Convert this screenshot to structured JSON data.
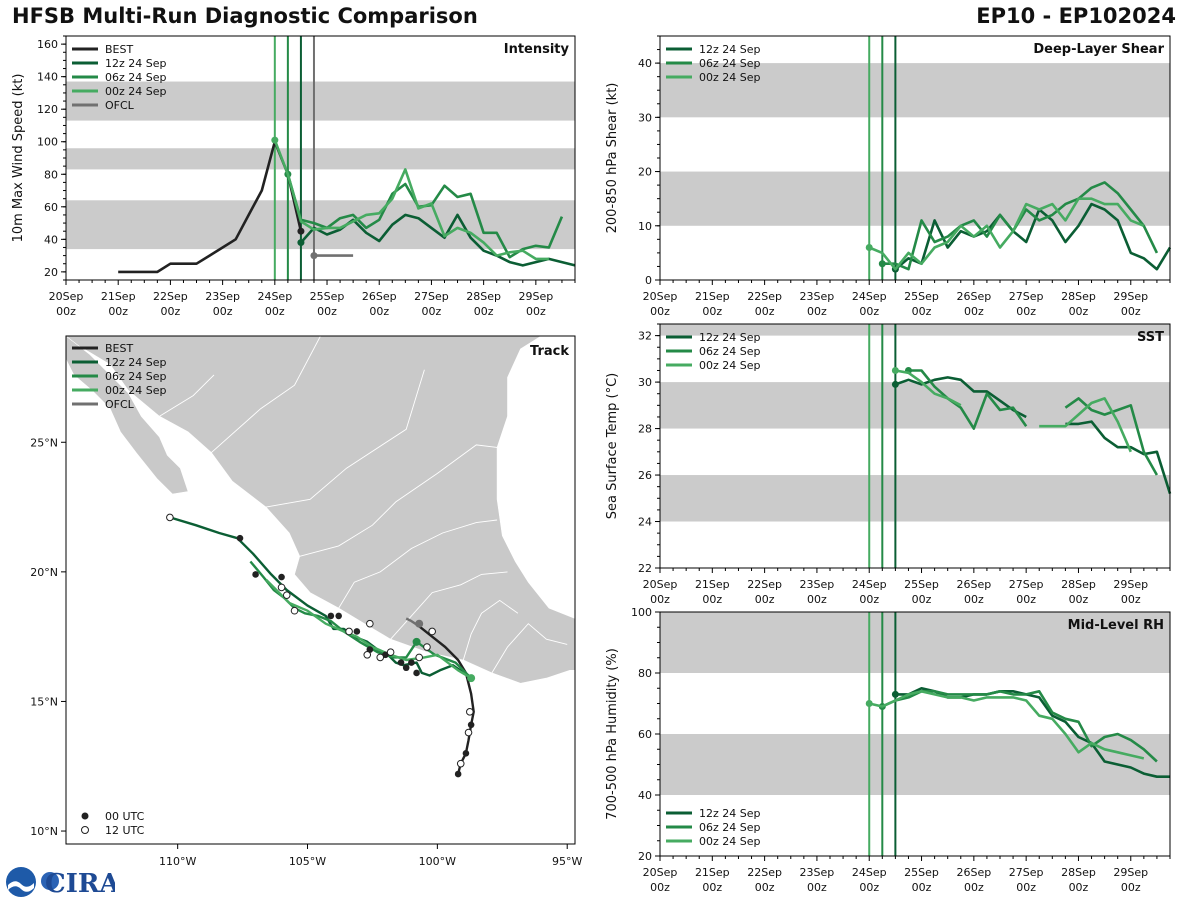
{
  "header": {
    "title": "HFSB Multi-Run Diagnostic Comparison",
    "storm": "EP10 - EP102024"
  },
  "colors": {
    "best": "#222222",
    "r12": "#0b5e34",
    "r06": "#248a47",
    "r00": "#46ab61",
    "ofcl": "#707070",
    "band": "#cbcbcb",
    "land": "#c9c9c9"
  },
  "legend": {
    "best": "BEST",
    "r12": "12z 24 Sep",
    "r06": "06z 24 Sep",
    "r00": "00z 24 Sep",
    "ofcl": "OFCL",
    "utc00": "00 UTC",
    "utc12": "12 UTC"
  },
  "logo": {
    "text": "CIRA"
  },
  "xticks": [
    {
      "day": "20Sep",
      "hr": "00z"
    },
    {
      "day": "21Sep",
      "hr": "00z"
    },
    {
      "day": "22Sep",
      "hr": "00z"
    },
    {
      "day": "23Sep",
      "hr": "00z"
    },
    {
      "day": "24Sep",
      "hr": "00z"
    },
    {
      "day": "25Sep",
      "hr": "00z"
    },
    {
      "day": "26Sep",
      "hr": "00z"
    },
    {
      "day": "27Sep",
      "hr": "00z"
    },
    {
      "day": "28Sep",
      "hr": "00z"
    },
    {
      "day": "29Sep",
      "hr": "00z"
    }
  ],
  "run_init_hours": [
    96,
    102,
    108
  ],
  "chart_data": [
    {
      "id": "intensity",
      "type": "line",
      "title": "Intensity",
      "xlabel": "",
      "ylabel": "10m Max Wind Speed (kt)",
      "xlim": [
        0,
        234
      ],
      "ylim": [
        15,
        165
      ],
      "yticks": [
        20,
        40,
        60,
        80,
        100,
        120,
        140,
        160
      ],
      "bands": [
        [
          34,
          64
        ],
        [
          83,
          96
        ],
        [
          113,
          137
        ]
      ],
      "series": [
        {
          "name": "BEST",
          "key": "best",
          "x": [
            24,
            30,
            36,
            42,
            48,
            54,
            60,
            66,
            72,
            78,
            84,
            90,
            96,
            102,
            108
          ],
          "y": [
            20,
            20,
            20,
            20,
            25,
            25,
            25,
            30,
            35,
            40,
            55,
            70,
            100,
            80,
            45
          ]
        },
        {
          "name": "OFCL",
          "key": "ofcl",
          "x": [
            114,
            120,
            126,
            132
          ],
          "y": [
            30,
            30,
            30,
            30
          ]
        },
        {
          "name": "12z 24 Sep",
          "key": "r12",
          "x": [
            108,
            114,
            120,
            126,
            132,
            138,
            144,
            150,
            156,
            162,
            168,
            174,
            180,
            186,
            192,
            198,
            204,
            210,
            216,
            222,
            228,
            234
          ],
          "y": [
            38,
            47,
            43,
            46,
            52,
            44,
            39,
            49,
            55,
            53,
            47,
            41,
            55,
            41,
            33,
            30,
            26,
            24,
            26,
            28,
            26,
            24
          ]
        },
        {
          "name": "06z 24 Sep",
          "key": "r06",
          "x": [
            102,
            108,
            114,
            120,
            126,
            132,
            138,
            144,
            150,
            156,
            162,
            168,
            174,
            180,
            186,
            192,
            198,
            204,
            210,
            216,
            222,
            228
          ],
          "y": [
            80,
            52,
            50,
            47,
            53,
            55,
            47,
            52,
            68,
            74,
            60,
            61,
            73,
            66,
            68,
            44,
            44,
            29,
            34,
            36,
            35,
            54
          ]
        },
        {
          "name": "00z 24 Sep",
          "key": "r00",
          "x": [
            96,
            102,
            108,
            114,
            120,
            126,
            132,
            138,
            144,
            150,
            156,
            162,
            168,
            174,
            180,
            186,
            192,
            198,
            204,
            210,
            216,
            222
          ],
          "y": [
            101,
            80,
            51,
            46,
            47,
            47,
            51,
            55,
            56,
            65,
            83,
            59,
            62,
            42,
            47,
            44,
            38,
            30,
            32,
            33,
            28,
            28
          ]
        }
      ]
    },
    {
      "id": "shear",
      "type": "line",
      "title": "Deep-Layer Shear",
      "xlabel": "",
      "ylabel": "200-850 hPa Shear (kt)",
      "xlim": [
        0,
        234
      ],
      "ylim": [
        0,
        45
      ],
      "yticks": [
        0,
        10,
        20,
        30,
        40
      ],
      "bands": [
        [
          10,
          20
        ],
        [
          30,
          40
        ]
      ],
      "series": [
        {
          "name": "12z 24 Sep",
          "key": "r12",
          "x": [
            108,
            114,
            120,
            126,
            132,
            138,
            144,
            150,
            156,
            162,
            168,
            174,
            180,
            186,
            192,
            198,
            204,
            210,
            216,
            222,
            228,
            234
          ],
          "y": [
            2,
            4,
            3,
            11,
            6,
            9,
            8,
            9,
            12,
            9,
            7,
            13,
            11,
            7,
            10,
            14,
            13,
            11,
            5,
            4,
            2,
            6
          ]
        },
        {
          "name": "06z 24 Sep",
          "key": "r06",
          "x": [
            102,
            108,
            114,
            120,
            126,
            132,
            138,
            144,
            150,
            156,
            162,
            168,
            174,
            180,
            186,
            192,
            198,
            204,
            210,
            216,
            222,
            228
          ],
          "y": [
            3,
            3,
            2,
            11,
            7,
            8,
            10,
            11,
            8,
            12,
            9,
            13,
            11,
            12,
            14,
            15,
            17,
            18,
            16,
            13,
            10,
            5
          ]
        },
        {
          "name": "00z 24 Sep",
          "key": "r00",
          "x": [
            96,
            102,
            108,
            114,
            120,
            126,
            132,
            138,
            144,
            150,
            156,
            162,
            168,
            174,
            180,
            186,
            192,
            198,
            204,
            210,
            216,
            222
          ],
          "y": [
            6,
            5,
            2,
            5,
            3,
            6,
            7,
            10,
            8,
            10,
            6,
            9,
            14,
            13,
            14,
            11,
            15,
            15,
            14,
            14,
            11,
            10
          ]
        }
      ]
    },
    {
      "id": "sst",
      "type": "line",
      "title": "SST",
      "xlabel": "",
      "ylabel": "Sea Surface Temp (°C)",
      "xlim": [
        0,
        234
      ],
      "ylim": [
        22,
        32.5
      ],
      "yticks": [
        22,
        24,
        26,
        28,
        30,
        32
      ],
      "bands": [
        [
          24,
          26
        ],
        [
          28,
          30
        ],
        [
          32,
          32.5
        ]
      ],
      "series": [
        {
          "name": "12z 24 Sep",
          "key": "r12",
          "x": [
            108,
            114,
            120,
            126,
            132,
            138,
            144,
            150,
            156,
            162,
            168,
            null,
            186,
            192,
            198,
            204,
            210,
            216,
            222,
            228,
            234
          ],
          "y": [
            29.9,
            30.1,
            29.9,
            30.1,
            30.2,
            30.1,
            29.6,
            29.6,
            29.2,
            28.8,
            28.5,
            null,
            28.2,
            28.2,
            28.3,
            27.6,
            27.2,
            27.2,
            26.9,
            27.0,
            25.2
          ]
        },
        {
          "name": "06z 24 Sep",
          "key": "r06",
          "x": [
            114,
            120,
            126,
            132,
            138,
            144,
            150,
            156,
            162,
            168,
            null,
            186,
            192,
            198,
            204,
            210,
            216,
            222,
            228
          ],
          "y": [
            30.5,
            30.5,
            29.8,
            29.3,
            28.9,
            28.0,
            29.5,
            28.8,
            28.9,
            28.1,
            null,
            28.9,
            29.3,
            28.8,
            28.6,
            28.8,
            29.0,
            27.0,
            26.0
          ]
        },
        {
          "name": "00z 24 Sep",
          "key": "r00",
          "x": [
            108,
            114,
            120,
            126,
            132,
            138,
            null,
            174,
            180,
            186,
            192,
            198,
            204,
            210,
            216
          ],
          "y": [
            30.5,
            30.4,
            30.0,
            29.5,
            29.3,
            29.0,
            null,
            28.1,
            28.1,
            28.1,
            28.6,
            29.1,
            29.3,
            28.3,
            27.0
          ]
        }
      ]
    },
    {
      "id": "rh",
      "type": "line",
      "title": "Mid-Level RH",
      "xlabel": "",
      "ylabel": "700-500 hPa Humidity (%)",
      "xlim": [
        0,
        234
      ],
      "ylim": [
        20,
        100
      ],
      "yticks": [
        20,
        40,
        60,
        80,
        100
      ],
      "bands": [
        [
          40,
          60
        ],
        [
          80,
          100
        ]
      ],
      "series": [
        {
          "name": "12z 24 Sep",
          "key": "r12",
          "x": [
            108,
            114,
            120,
            126,
            132,
            138,
            144,
            150,
            156,
            162,
            168,
            174,
            180,
            186,
            192,
            198,
            204,
            210,
            216,
            222,
            228,
            234
          ],
          "y": [
            73,
            73,
            75,
            74,
            72,
            72,
            73,
            73,
            74,
            74,
            73,
            72,
            66,
            64,
            59,
            57,
            51,
            50,
            49,
            47,
            46,
            46
          ]
        },
        {
          "name": "06z 24 Sep",
          "key": "r06",
          "x": [
            102,
            108,
            114,
            120,
            126,
            132,
            138,
            144,
            150,
            156,
            162,
            168,
            174,
            180,
            186,
            192,
            198,
            204,
            210,
            216,
            222,
            228
          ],
          "y": [
            69,
            71,
            72,
            74,
            74,
            73,
            73,
            73,
            73,
            74,
            73,
            73,
            74,
            67,
            65,
            64,
            56,
            59,
            60,
            58,
            55,
            51
          ]
        },
        {
          "name": "00z 24 Sep",
          "key": "r00",
          "x": [
            96,
            102,
            108,
            114,
            120,
            126,
            132,
            138,
            144,
            150,
            156,
            162,
            168,
            174,
            180,
            186,
            192,
            198,
            204,
            210,
            216,
            222
          ],
          "y": [
            70,
            69,
            71,
            73,
            74,
            73,
            72,
            72,
            71,
            72,
            72,
            72,
            71,
            66,
            65,
            60,
            54,
            57,
            55,
            54,
            53,
            52
          ]
        }
      ]
    },
    {
      "id": "track",
      "type": "scatter",
      "title": "Track",
      "xlabel": "",
      "ylabel": "",
      "xlim": [
        -114.3,
        -94.7
      ],
      "ylim": [
        9.5,
        29.1
      ],
      "xticks": [
        -110,
        -105,
        -100,
        -95
      ],
      "xtick_labels": [
        "110°W",
        "105°W",
        "100°W",
        "95°W"
      ],
      "yticks": [
        10,
        15,
        20,
        25
      ],
      "ytick_labels": [
        "10°N",
        "15°N",
        "20°N",
        "25°N"
      ],
      "series": [
        {
          "name": "BEST",
          "key": "best",
          "lon": [
            -99.2,
            -99.1,
            -98.9,
            -98.8,
            -98.75,
            -98.7,
            -98.6,
            -98.7,
            -98.9,
            -99.2,
            -99.7,
            -100.2,
            -100.7
          ],
          "lat": [
            12.2,
            12.6,
            13.0,
            13.5,
            13.8,
            14.1,
            14.6,
            15.3,
            16.1,
            16.6,
            17.1,
            17.5,
            17.9
          ]
        },
        {
          "name": "OFCL",
          "key": "ofcl",
          "lon": [
            -100.7,
            -101.0,
            -101.2
          ],
          "lat": [
            17.9,
            18.1,
            18.2
          ]
        },
        {
          "name": "12z 24 Sep",
          "key": "r12",
          "lon": [
            -98.7,
            -99.4,
            -99.9,
            -100.3,
            -100.6,
            -100.8,
            -101.3,
            -101.6,
            -101.9,
            -102.3,
            -102.7,
            -103.2,
            -103.6,
            -104.0,
            -104.3,
            -105.0,
            -105.8,
            -106.4,
            -107.1,
            -107.7,
            -108.4,
            -109.3,
            -110.3
          ],
          "lat": [
            15.9,
            16.4,
            16.2,
            16.0,
            16.1,
            16.5,
            16.4,
            16.5,
            16.8,
            17.0,
            17.3,
            17.5,
            17.8,
            17.8,
            18.3,
            18.7,
            19.3,
            19.9,
            20.7,
            21.3,
            21.5,
            21.8,
            22.1
          ]
        },
        {
          "name": "06z 24 Sep",
          "key": "r06",
          "lon": [
            -98.7,
            -99.3,
            -100.1,
            -100.8,
            -101.2,
            -101.7,
            -102.3,
            -103.0,
            -103.6,
            -104.1,
            -104.6,
            -105.1,
            -105.5,
            -105.9,
            -106.3,
            -106.7,
            -107.2
          ],
          "lat": [
            15.9,
            16.5,
            16.8,
            17.3,
            16.7,
            16.7,
            16.9,
            17.3,
            17.7,
            18.1,
            18.3,
            18.4,
            18.6,
            19.0,
            19.3,
            19.8,
            20.4
          ]
        },
        {
          "name": "00z 24 Sep",
          "key": "r00",
          "lon": [
            -98.7,
            -99.2,
            -100.0,
            -100.5,
            -101.2,
            -101.8,
            -102.5,
            -103.1,
            -103.6,
            -104.3,
            -105.0,
            -105.7,
            -106.2,
            -106.6
          ],
          "lat": [
            15.9,
            16.2,
            16.8,
            16.7,
            16.6,
            16.8,
            17.1,
            17.5,
            17.7,
            18.0,
            18.5,
            18.8,
            19.3,
            19.7
          ]
        }
      ],
      "fixes_00utc": {
        "lon": [
          -99.2,
          -98.9,
          -98.7,
          -100.8,
          -101.2,
          -102.0,
          -102.6,
          -103.1,
          -104.1,
          -106.0,
          -107.0,
          -103.8,
          -101.4,
          -101.0,
          -107.6
        ],
        "lat": [
          12.2,
          13.0,
          14.1,
          16.1,
          16.3,
          16.8,
          17.0,
          17.7,
          18.3,
          19.8,
          19.9,
          18.3,
          16.5,
          16.5,
          21.3
        ]
      },
      "fixes_12utc": {
        "lon": [
          -99.1,
          -98.8,
          -98.75,
          -100.2,
          -100.4,
          -100.7,
          -102.2,
          -102.6,
          -103.4,
          -105.5,
          -105.8,
          -106.0,
          -110.3,
          -101.8,
          -102.7
        ],
        "lat": [
          12.6,
          13.8,
          14.6,
          17.7,
          17.1,
          16.7,
          16.7,
          18.0,
          17.7,
          18.5,
          19.1,
          19.4,
          22.1,
          16.9,
          16.8
        ]
      }
    }
  ]
}
